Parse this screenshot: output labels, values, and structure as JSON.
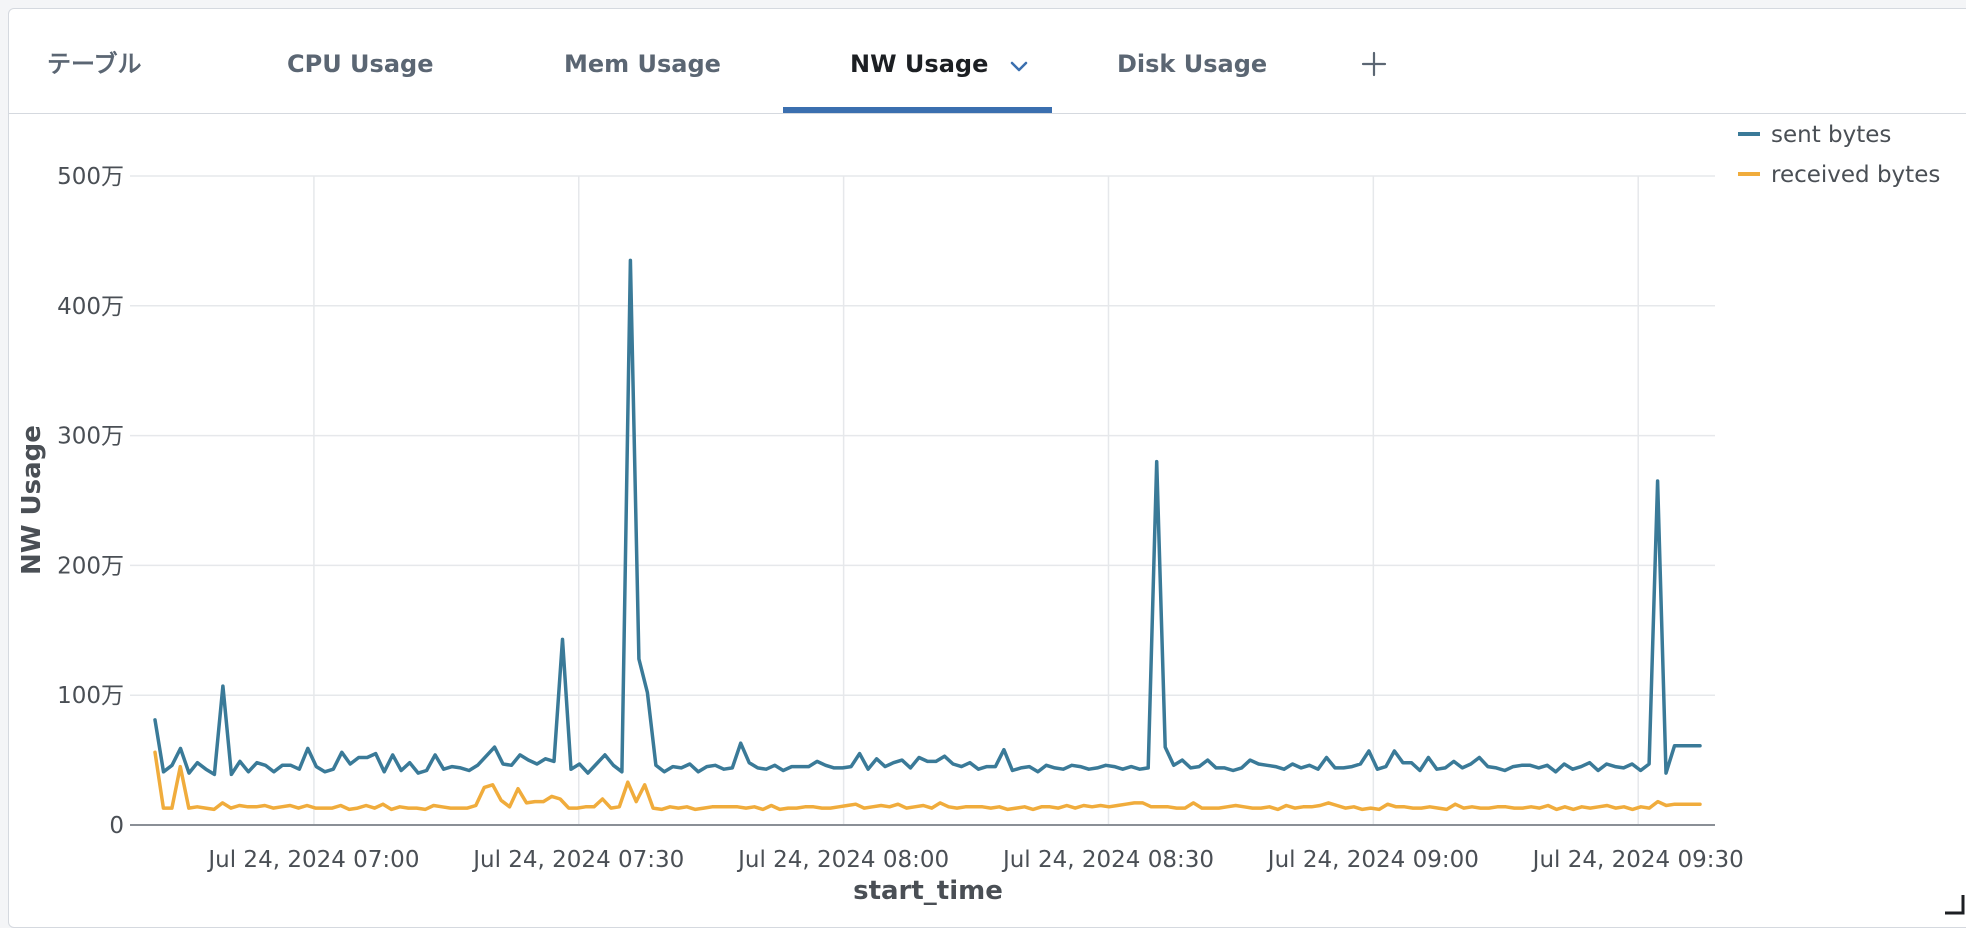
{
  "tabs": [
    {
      "label": "テーブル",
      "active": false
    },
    {
      "label": "CPU Usage",
      "active": false
    },
    {
      "label": "Mem Usage",
      "active": false
    },
    {
      "label": "NW Usage",
      "active": true
    },
    {
      "label": "Disk Usage",
      "active": false
    }
  ],
  "colors": {
    "sent": "#3a7a98",
    "received": "#f0ac3c",
    "accent": "#3b6faf"
  },
  "icons": {
    "add_tab": "plus-icon",
    "tab_menu": "chevron-down-icon",
    "resize": "resize-corner-icon"
  },
  "chart_data": {
    "type": "line",
    "title": "",
    "xlabel": "start_time",
    "ylabel": "NW Usage",
    "x_start": "2024-07-24 06:42",
    "x_end": "2024-07-24 09:37",
    "x_ticks": [
      "Jul 24, 2024 07:00",
      "Jul 24, 2024 07:30",
      "Jul 24, 2024 08:00",
      "Jul 24, 2024 08:30",
      "Jul 24, 2024 09:00",
      "Jul 24, 2024 09:30"
    ],
    "y_ticks": [
      "0",
      "100万",
      "200万",
      "300万",
      "400万",
      "500万"
    ],
    "ylim": [
      0,
      5000000
    ],
    "grid": true,
    "legend_position": "top-right",
    "series": [
      {
        "name": "sent bytes",
        "values": [
          810000,
          410000,
          460000,
          590000,
          400000,
          480000,
          430000,
          390000,
          1070000,
          390000,
          490000,
          410000,
          480000,
          460000,
          410000,
          460000,
          460000,
          430000,
          590000,
          450000,
          410000,
          430000,
          560000,
          470000,
          520000,
          520000,
          550000,
          410000,
          540000,
          420000,
          480000,
          400000,
          420000,
          540000,
          430000,
          450000,
          440000,
          420000,
          460000,
          530000,
          600000,
          470000,
          460000,
          540000,
          500000,
          470000,
          510000,
          490000,
          1430000,
          430000,
          470000,
          400000,
          470000,
          540000,
          460000,
          410000,
          4350000,
          1280000,
          1020000,
          460000,
          410000,
          450000,
          440000,
          470000,
          410000,
          450000,
          460000,
          430000,
          440000,
          630000,
          480000,
          440000,
          430000,
          460000,
          420000,
          450000,
          450000,
          450000,
          490000,
          460000,
          440000,
          440000,
          450000,
          550000,
          430000,
          510000,
          450000,
          480000,
          500000,
          440000,
          520000,
          490000,
          490000,
          530000,
          470000,
          450000,
          480000,
          430000,
          450000,
          450000,
          580000,
          420000,
          440000,
          450000,
          410000,
          460000,
          440000,
          430000,
          460000,
          450000,
          430000,
          440000,
          460000,
          450000,
          430000,
          450000,
          430000,
          440000,
          2800000,
          600000,
          460000,
          500000,
          440000,
          450000,
          500000,
          440000,
          440000,
          420000,
          440000,
          500000,
          470000,
          460000,
          450000,
          430000,
          470000,
          440000,
          460000,
          430000,
          520000,
          440000,
          440000,
          450000,
          470000,
          570000,
          430000,
          450000,
          570000,
          480000,
          480000,
          420000,
          520000,
          430000,
          440000,
          490000,
          440000,
          470000,
          520000,
          450000,
          440000,
          420000,
          450000,
          460000,
          460000,
          440000,
          460000,
          410000,
          470000,
          430000,
          450000,
          480000,
          420000,
          470000,
          450000,
          440000,
          470000,
          420000,
          470000,
          2650000,
          400000,
          610000,
          610000,
          610000,
          610000
        ]
      },
      {
        "name": "received bytes",
        "values": [
          560000,
          130000,
          130000,
          450000,
          130000,
          140000,
          130000,
          120000,
          170000,
          130000,
          150000,
          140000,
          140000,
          150000,
          130000,
          140000,
          150000,
          130000,
          150000,
          130000,
          130000,
          130000,
          150000,
          120000,
          130000,
          150000,
          130000,
          160000,
          120000,
          140000,
          130000,
          130000,
          120000,
          150000,
          140000,
          130000,
          130000,
          130000,
          150000,
          290000,
          310000,
          190000,
          140000,
          280000,
          170000,
          180000,
          180000,
          220000,
          200000,
          130000,
          130000,
          140000,
          140000,
          200000,
          130000,
          140000,
          330000,
          180000,
          310000,
          130000,
          120000,
          140000,
          130000,
          140000,
          120000,
          130000,
          140000,
          140000,
          140000,
          140000,
          130000,
          140000,
          120000,
          150000,
          120000,
          130000,
          130000,
          140000,
          140000,
          130000,
          130000,
          140000,
          150000,
          160000,
          130000,
          140000,
          150000,
          140000,
          160000,
          130000,
          140000,
          150000,
          130000,
          170000,
          140000,
          130000,
          140000,
          140000,
          140000,
          130000,
          140000,
          120000,
          130000,
          140000,
          120000,
          140000,
          140000,
          130000,
          150000,
          130000,
          150000,
          140000,
          150000,
          140000,
          150000,
          160000,
          170000,
          170000,
          140000,
          140000,
          140000,
          130000,
          130000,
          170000,
          130000,
          130000,
          130000,
          140000,
          150000,
          140000,
          130000,
          130000,
          140000,
          120000,
          150000,
          130000,
          140000,
          140000,
          150000,
          170000,
          150000,
          130000,
          140000,
          120000,
          130000,
          120000,
          160000,
          140000,
          140000,
          130000,
          130000,
          140000,
          130000,
          120000,
          160000,
          130000,
          140000,
          130000,
          130000,
          140000,
          140000,
          130000,
          130000,
          140000,
          130000,
          150000,
          120000,
          140000,
          120000,
          140000,
          130000,
          140000,
          150000,
          130000,
          140000,
          120000,
          140000,
          130000,
          180000,
          150000,
          160000,
          160000,
          160000,
          160000
        ]
      }
    ]
  }
}
